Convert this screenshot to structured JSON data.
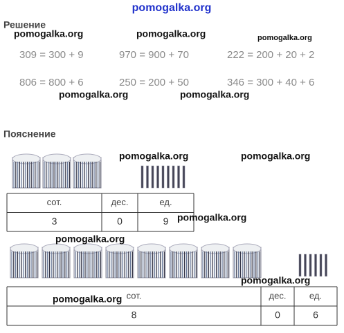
{
  "site": "pomogalka.org",
  "solution": {
    "heading": "Решение",
    "equations": [
      "309 = 300 + 9",
      "970 = 900 + 70",
      "222 = 200 + 20 + 2",
      "806 = 800 + 6",
      "250 = 200 + 50",
      "346 = 300 + 40 + 6"
    ]
  },
  "explanation": {
    "heading": "Пояснение",
    "tables": [
      {
        "header": [
          "сот.",
          "дес.",
          "ед."
        ],
        "row": [
          "3",
          "0",
          "9"
        ]
      },
      {
        "header": [
          "сот.",
          "дес.",
          "ед."
        ],
        "row": [
          "8",
          "0",
          "6"
        ]
      }
    ]
  },
  "watermarks": [
    "pomogalka.org",
    "pomogalka.org",
    "pomogalka.org",
    "pomogalka.org",
    "pomogalka.org",
    "pomogalka.org",
    "pomogalka.org",
    "pomogalka.org",
    "pomogalka.org",
    "pomogalka.org",
    "pomogalka.org"
  ]
}
